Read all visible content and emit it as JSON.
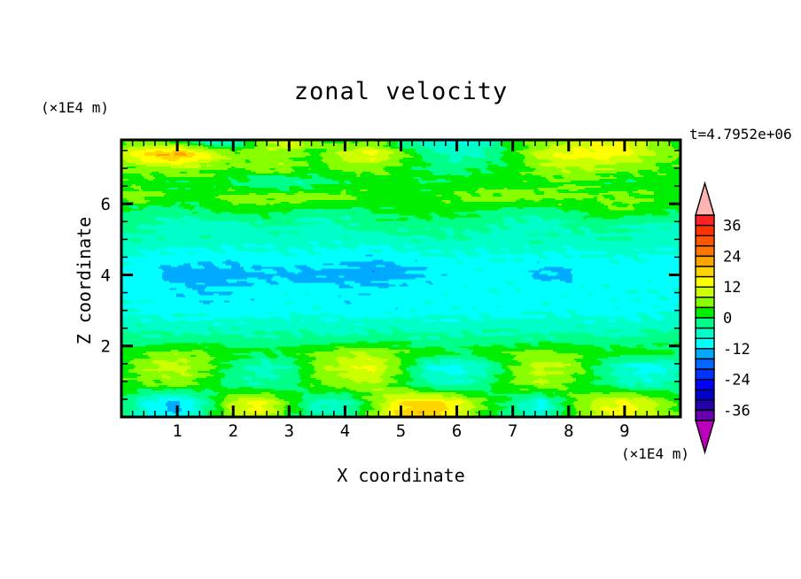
{
  "chart_data": {
    "type": "heatmap",
    "title": "zonal velocity",
    "timestamp": "t=4.7952e+06",
    "xlabel": "X coordinate",
    "ylabel": "Z coordinate",
    "x_units": "(×1E4 m)",
    "y_units": "(×1E4 m)",
    "x_range": [
      0,
      10
    ],
    "z_range": [
      0,
      7.8
    ],
    "x_ticks": [
      1,
      2,
      3,
      4,
      5,
      6,
      7,
      8,
      9
    ],
    "x_minor_step": 0.2,
    "z_ticks": [
      2,
      4,
      6
    ],
    "z_minor_step": 0.5,
    "colorbar": {
      "levels_min": -40,
      "levels_max": 40,
      "level_step": 4,
      "labels": [
        {
          "v": 36,
          "text": "36"
        },
        {
          "v": 24,
          "text": "24"
        },
        {
          "v": 12,
          "text": "12"
        },
        {
          "v": 0,
          "text": "0"
        },
        {
          "v": -12,
          "text": "-12"
        },
        {
          "v": -24,
          "text": "-24"
        },
        {
          "v": -36,
          "text": "-36"
        }
      ],
      "colors_low_to_high": [
        "#6600AA",
        "#2200AA",
        "#0000CC",
        "#0000FF",
        "#0033FF",
        "#0066FF",
        "#00AAFF",
        "#00FFFF",
        "#00FFC8",
        "#00FF88",
        "#00EE00",
        "#88FF00",
        "#CCFF00",
        "#FFFF00",
        "#FFD500",
        "#FFA500",
        "#FF7700",
        "#FF5500",
        "#FF3300",
        "#FF2222"
      ],
      "over_color": "#FFB3B3",
      "under_color": "#BB00BB"
    },
    "grid": {
      "x": [
        0,
        0.5,
        1,
        1.5,
        2,
        2.5,
        3,
        3.5,
        4,
        4.5,
        5,
        5.5,
        6,
        6.5,
        7,
        7.5,
        8,
        8.5,
        9,
        9.5,
        10
      ],
      "z": [
        0,
        0.4,
        0.9,
        1.4,
        1.8,
        2.2,
        2.6,
        3.0,
        3.6,
        4.0,
        4.4,
        5.0,
        5.4,
        5.8,
        6.2,
        6.6,
        7.0,
        7.4,
        7.8
      ],
      "values": [
        [
          0,
          -8,
          -12,
          -2,
          8,
          12,
          2,
          -4,
          -4,
          6,
          18,
          20,
          12,
          2,
          -2,
          -8,
          2,
          10,
          14,
          8,
          2
        ],
        [
          0,
          -10,
          -14,
          -4,
          10,
          14,
          4,
          -6,
          -6,
          4,
          16,
          18,
          14,
          4,
          -2,
          -10,
          2,
          10,
          14,
          10,
          2
        ],
        [
          2,
          4,
          6,
          2,
          -2,
          -4,
          -2,
          4,
          6,
          8,
          2,
          -4,
          -6,
          -2,
          4,
          8,
          4,
          0,
          -4,
          -6,
          -2
        ],
        [
          2,
          8,
          10,
          6,
          -2,
          -6,
          -4,
          6,
          10,
          13,
          4,
          -8,
          -10,
          -6,
          4,
          10,
          8,
          0,
          -8,
          -10,
          -6
        ],
        [
          2,
          4,
          6,
          4,
          2,
          0,
          2,
          4,
          8,
          8,
          4,
          2,
          0,
          2,
          4,
          6,
          4,
          2,
          2,
          2,
          0
        ],
        [
          -2,
          -3,
          -3,
          -2,
          -3,
          -3,
          -2,
          -3,
          -3,
          -2,
          -2,
          -3,
          -3,
          -2,
          -3,
          -3,
          -2,
          -3,
          -3,
          -2,
          -2
        ],
        [
          -5,
          -6,
          -6,
          -7,
          -6,
          -6,
          -6,
          -6,
          -7,
          -6,
          -6,
          -6,
          -7,
          -6,
          -6,
          -6,
          -6,
          -6,
          -7,
          -6,
          -5
        ],
        [
          -8,
          -9,
          -10,
          -10,
          -10,
          -10,
          -9,
          -9,
          -10,
          -10,
          -10,
          -9,
          -9,
          -10,
          -10,
          -9,
          -9,
          -10,
          -10,
          -9,
          -8
        ],
        [
          -9,
          -10,
          -11,
          -12,
          -11,
          -10,
          -10,
          -10,
          -11,
          -11,
          -10,
          -10,
          -9,
          -9,
          -9,
          -10,
          -10,
          -9,
          -9,
          -9,
          -9
        ],
        [
          -9,
          -11,
          -14,
          -15,
          -14,
          -13,
          -13,
          -14,
          -14,
          -15,
          -14,
          -11,
          -10,
          -10,
          -10,
          -13,
          -13,
          -10,
          -10,
          -10,
          -9
        ],
        [
          -9,
          -10,
          -11,
          -11,
          -11,
          -10,
          -10,
          -10,
          -11,
          -12,
          -11,
          -10,
          -9,
          -9,
          -9,
          -10,
          -10,
          -9,
          -9,
          -9,
          -9
        ],
        [
          -4,
          -5,
          -6,
          -5,
          -6,
          -6,
          -6,
          -6,
          -6,
          -6,
          -5,
          -4,
          -4,
          -6,
          -5,
          -4,
          -6,
          -5,
          -4,
          -6,
          -6
        ],
        [
          -2,
          -4,
          -6,
          -6,
          -6,
          -4,
          -4,
          -6,
          -4,
          -2,
          -2,
          -2,
          -4,
          -2,
          -6,
          -6,
          -4,
          -2,
          -4,
          -6,
          -4
        ],
        [
          0,
          -2,
          -2,
          0,
          2,
          2,
          0,
          -2,
          -2,
          0,
          2,
          2,
          2,
          0,
          -2,
          -2,
          0,
          2,
          4,
          2,
          0
        ],
        [
          6,
          6,
          2,
          2,
          6,
          6,
          6,
          6,
          6,
          2,
          2,
          2,
          4,
          6,
          6,
          6,
          6,
          4,
          6,
          4,
          2
        ],
        [
          2,
          2,
          0,
          2,
          0,
          -4,
          -4,
          -2,
          0,
          2,
          2,
          0,
          2,
          2,
          2,
          2,
          4,
          2,
          0,
          2,
          2
        ],
        [
          4,
          6,
          8,
          6,
          4,
          6,
          6,
          2,
          6,
          6,
          2,
          0,
          -2,
          0,
          2,
          6,
          8,
          8,
          6,
          4,
          2
        ],
        [
          10,
          18,
          22,
          14,
          6,
          6,
          6,
          2,
          10,
          14,
          6,
          -2,
          -6,
          -4,
          2,
          10,
          14,
          14,
          14,
          8,
          4
        ],
        [
          2,
          3,
          0,
          -8,
          -8,
          6,
          14,
          6,
          2,
          4,
          -4,
          -8,
          -8,
          -6,
          2,
          4,
          6,
          12,
          13,
          6,
          2
        ]
      ]
    }
  }
}
